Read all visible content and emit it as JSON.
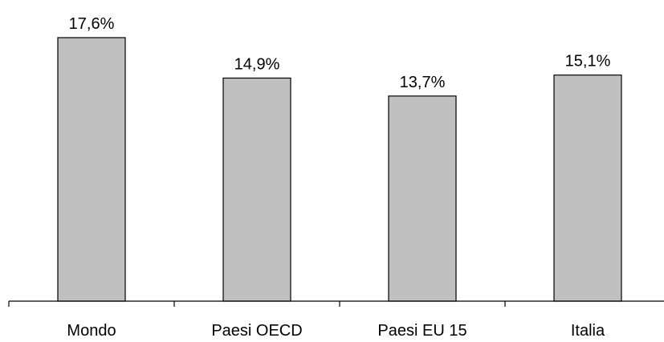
{
  "chart_data": {
    "type": "bar",
    "categories": [
      "Mondo",
      "Paesi OECD",
      "Paesi EU 15",
      "Italia"
    ],
    "values": [
      17.6,
      14.9,
      13.7,
      15.1
    ],
    "value_labels": [
      "17,6%",
      "14,9%",
      "13,7%",
      "15,1%"
    ],
    "ylim": [
      0,
      17.6
    ],
    "grid": false,
    "legend": "none",
    "bar_color": "#c0c0c0",
    "bar_outline_color": "#000000",
    "axis_color": "#000000"
  }
}
